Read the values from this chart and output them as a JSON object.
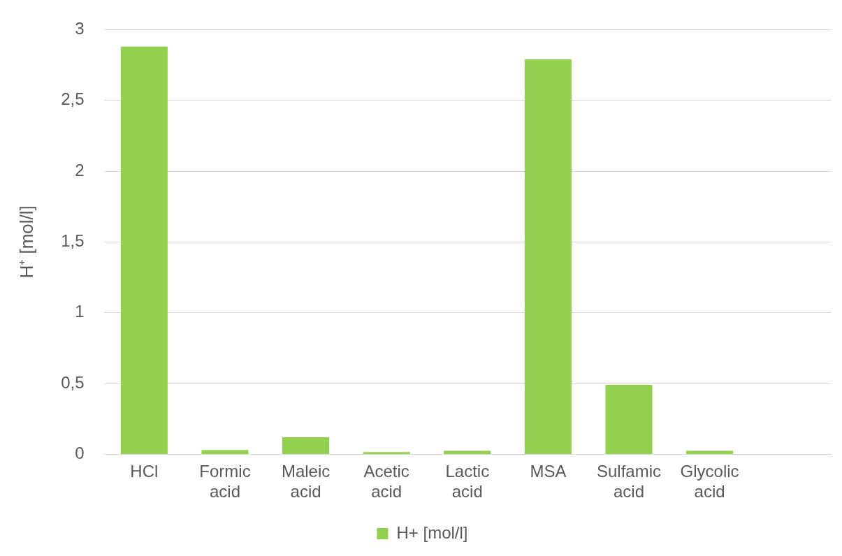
{
  "chart_data": {
    "type": "bar",
    "ylabel": "H⁺ [mol/l]",
    "categories": [
      "HCl",
      "Formic acid",
      "Maleic acid",
      "Acetic acid",
      "Lactic acid",
      "MSA",
      "Sulfamic acid",
      "Glycolic acid",
      null
    ],
    "series": [
      {
        "name": "H+ [mol/l]",
        "color": "#92d050",
        "values": [
          2.88,
          0.03,
          0.12,
          0.015,
          0.025,
          2.79,
          0.49,
          0.025,
          null
        ]
      }
    ],
    "ylim": [
      0,
      3
    ],
    "yticks": [
      0,
      {
        "value": 0.5,
        "label": "0,5"
      },
      1,
      {
        "value": 1.5,
        "label": "1,5"
      },
      2,
      {
        "value": 2.5,
        "label": "2,5"
      },
      3
    ],
    "grid": "y",
    "legend": "bottom"
  }
}
